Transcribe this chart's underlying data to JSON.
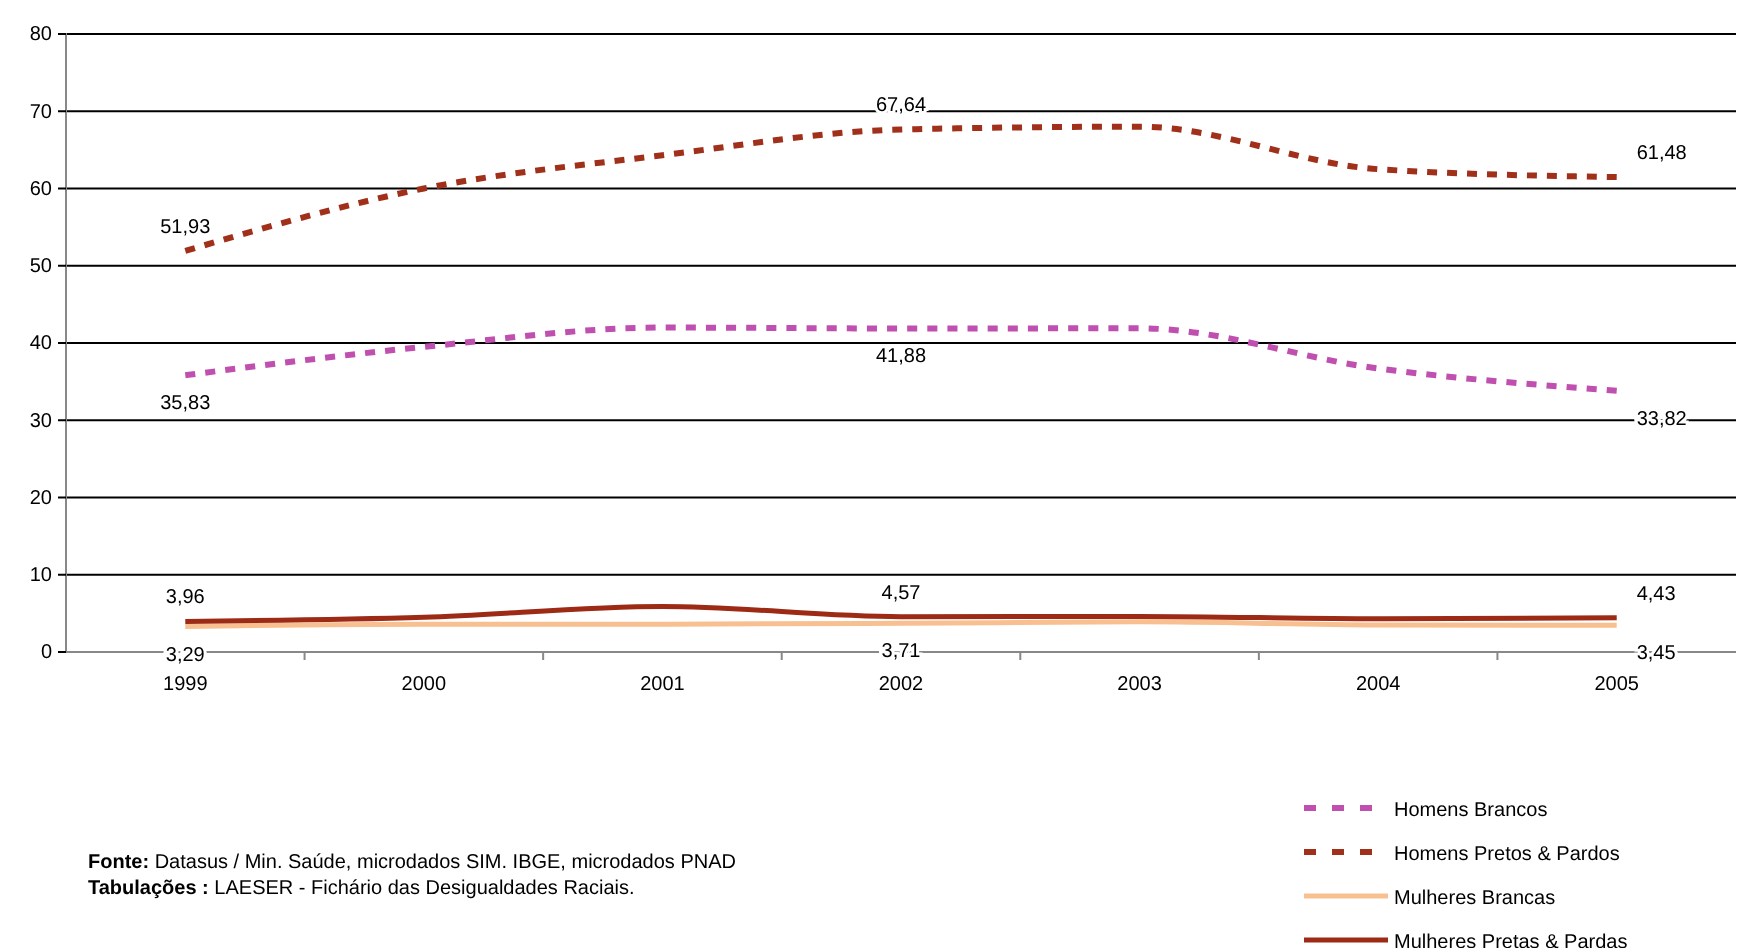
{
  "chart_data": {
    "type": "line",
    "categories": [
      "1999",
      "2000",
      "2001",
      "2002",
      "2003",
      "2004",
      "2005"
    ],
    "series": [
      {
        "name": "Homens Brancos",
        "color": "#c050b0",
        "line_style": "dashed",
        "values": [
          35.83,
          39.5,
          42,
          41.88,
          41.9,
          36.7,
          33.82
        ],
        "value_labels": [
          "35,83",
          null,
          null,
          "41,88",
          null,
          null,
          "33,82"
        ]
      },
      {
        "name": "Homens Pretos & Pardos",
        "color": "#a0301a",
        "line_style": "dashed",
        "values": [
          51.93,
          60,
          64.3,
          67.64,
          68,
          62.5,
          61.48
        ],
        "value_labels": [
          "51,93",
          null,
          null,
          "67,64",
          null,
          null,
          "61,48"
        ]
      },
      {
        "name": "Mulheres Brancas",
        "color": "#f8c090",
        "line_style": "solid",
        "values": [
          3.29,
          3.6,
          3.6,
          3.71,
          3.9,
          3.5,
          3.45
        ],
        "value_labels": [
          "3,29",
          null,
          null,
          "3,71",
          null,
          null,
          "3,45"
        ]
      },
      {
        "name": "Mulheres Pretas & Pardas",
        "color": "#9c2a14",
        "line_style": "solid",
        "values": [
          3.96,
          4.5,
          5.9,
          4.57,
          4.6,
          4.3,
          4.43
        ],
        "value_labels": [
          "3,96",
          null,
          null,
          "4,57",
          null,
          null,
          "4,43"
        ]
      }
    ],
    "ylim": [
      0,
      80
    ],
    "yticks": [
      0,
      10,
      20,
      30,
      40,
      50,
      60,
      70,
      80
    ],
    "grid": "y",
    "legend": "bottom right",
    "marker": "none",
    "annotations": [
      "Fonte: Datasus / Min. Saúde, microdados SIM. IBGE, microdados PNAD",
      "Tabulações : LAESER -  Fichário das Desigualdades Raciais."
    ]
  }
}
